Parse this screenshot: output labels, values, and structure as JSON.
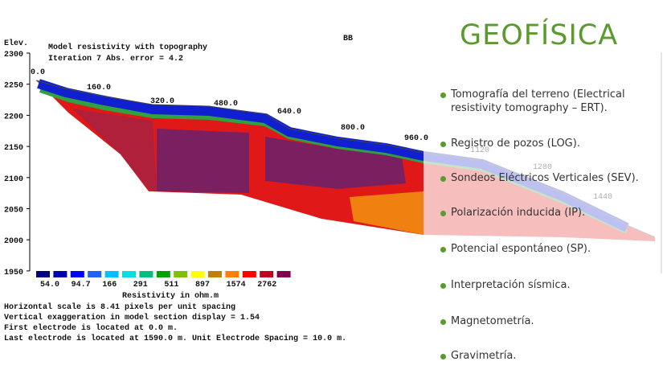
{
  "heading": "GEOFÍSICA",
  "list": [
    "Tomografía del terreno (Electrical resistivity tomography – ERT).",
    "Registro de pozos (LOG).",
    "Sondeos Eléctricos Verticales (SEV).",
    "Polarización inducida (IP).",
    "Potencial espontáneo (SP).",
    "Interpretación sísmica.",
    "Magnetometría.",
    "Gravimetría."
  ],
  "figure": {
    "elev_label": "Elev.",
    "title": "Model resistivity with topography",
    "subtitle": "Iteration 7 Abs. error = 4.2",
    "line_name": "BB",
    "elevations": [
      "2300",
      "2250",
      "2200",
      "2150",
      "2100",
      "2050",
      "2000",
      "1950"
    ],
    "distances": [
      "0.0",
      "160.0",
      "320.0",
      "480.0",
      "640.0",
      "800.0",
      "960.0",
      "1120",
      "1280",
      "1440"
    ],
    "scale_labels": [
      "54.0",
      "94.7",
      "166",
      "291",
      "511",
      "897",
      "1574",
      "2762"
    ],
    "scale_title": "Resistivity in ohm.m",
    "notes": [
      "Horizontal scale is 8.41 pixels per unit spacing",
      "Vertical exaggeration in model section display = 1.54",
      "First electrode is located at 0.0  m.",
      "Last electrode is located at 1590.0 m.   Unit Electrode Spacing = 10.0 m."
    ]
  }
}
